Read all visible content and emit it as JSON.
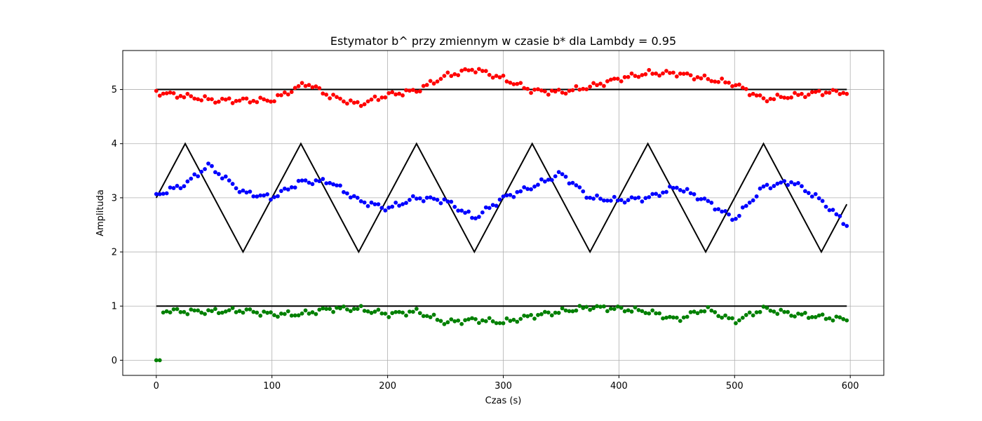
{
  "chart_data": {
    "type": "scatter",
    "title": "Estymator b^  przy zmiennym w czasie b* dla Lambdy = 0.95",
    "xlabel": "Czas (s)",
    "ylabel": "Amplituda",
    "xlim": [
      -29,
      629
    ],
    "ylim": [
      -0.28,
      5.72
    ],
    "xticks": [
      0,
      100,
      200,
      300,
      400,
      500,
      600
    ],
    "yticks": [
      0,
      1,
      2,
      3,
      4,
      5
    ],
    "grid": true,
    "colors": {
      "est_1": "#ff0000",
      "est_2": "#0000ff",
      "est_3": "#008000",
      "true": "#000000"
    },
    "true_lines": [
      {
        "type": "constant",
        "x": [
          0,
          597
        ],
        "y": [
          5,
          5
        ]
      },
      {
        "type": "triangle",
        "x": [
          0,
          25,
          75,
          125,
          175,
          225,
          275,
          325,
          375,
          425,
          475,
          525,
          575,
          597
        ],
        "y": [
          3,
          4,
          2,
          4,
          2,
          4,
          2,
          4,
          2,
          4,
          2,
          4,
          2,
          2.88
        ]
      },
      {
        "type": "constant",
        "x": [
          0,
          597
        ],
        "y": [
          1,
          1
        ]
      }
    ],
    "series": [
      {
        "color": "red",
        "x": [
          0,
          50,
          100,
          130,
          150,
          175,
          200,
          225,
          250,
          275,
          300,
          325,
          350,
          375,
          400,
          425,
          450,
          475,
          500,
          525,
          550,
          575,
          597
        ],
        "y": [
          4.95,
          4.8,
          4.8,
          5.12,
          4.88,
          4.72,
          4.9,
          4.98,
          5.25,
          5.38,
          5.2,
          4.98,
          4.95,
          5.05,
          5.2,
          5.3,
          5.3,
          5.2,
          5.1,
          4.82,
          4.88,
          4.95,
          4.95
        ]
      },
      {
        "color": "blue",
        "x": [
          0,
          25,
          45,
          75,
          100,
          125,
          150,
          175,
          200,
          225,
          250,
          275,
          300,
          325,
          350,
          375,
          400,
          425,
          450,
          475,
          500,
          525,
          550,
          575,
          597
        ],
        "y": [
          3.05,
          3.25,
          3.6,
          3.1,
          3.0,
          3.3,
          3.3,
          2.95,
          2.8,
          3.0,
          2.95,
          2.62,
          3.0,
          3.2,
          3.45,
          3.0,
          2.95,
          3.0,
          3.2,
          2.95,
          2.6,
          3.2,
          3.3,
          2.95,
          2.5
        ]
      },
      {
        "color": "green",
        "x": [
          0,
          2,
          5,
          25,
          50,
          75,
          100,
          125,
          150,
          175,
          200,
          225,
          250,
          275,
          300,
          325,
          350,
          375,
          400,
          425,
          450,
          475,
          500,
          525,
          550,
          575,
          597
        ],
        "y": [
          0,
          0,
          0.92,
          0.9,
          0.9,
          0.92,
          0.85,
          0.85,
          0.95,
          0.95,
          0.85,
          0.9,
          0.7,
          0.75,
          0.7,
          0.82,
          0.9,
          0.98,
          0.95,
          0.9,
          0.75,
          0.95,
          0.72,
          0.95,
          0.85,
          0.8,
          0.75
        ]
      }
    ]
  }
}
